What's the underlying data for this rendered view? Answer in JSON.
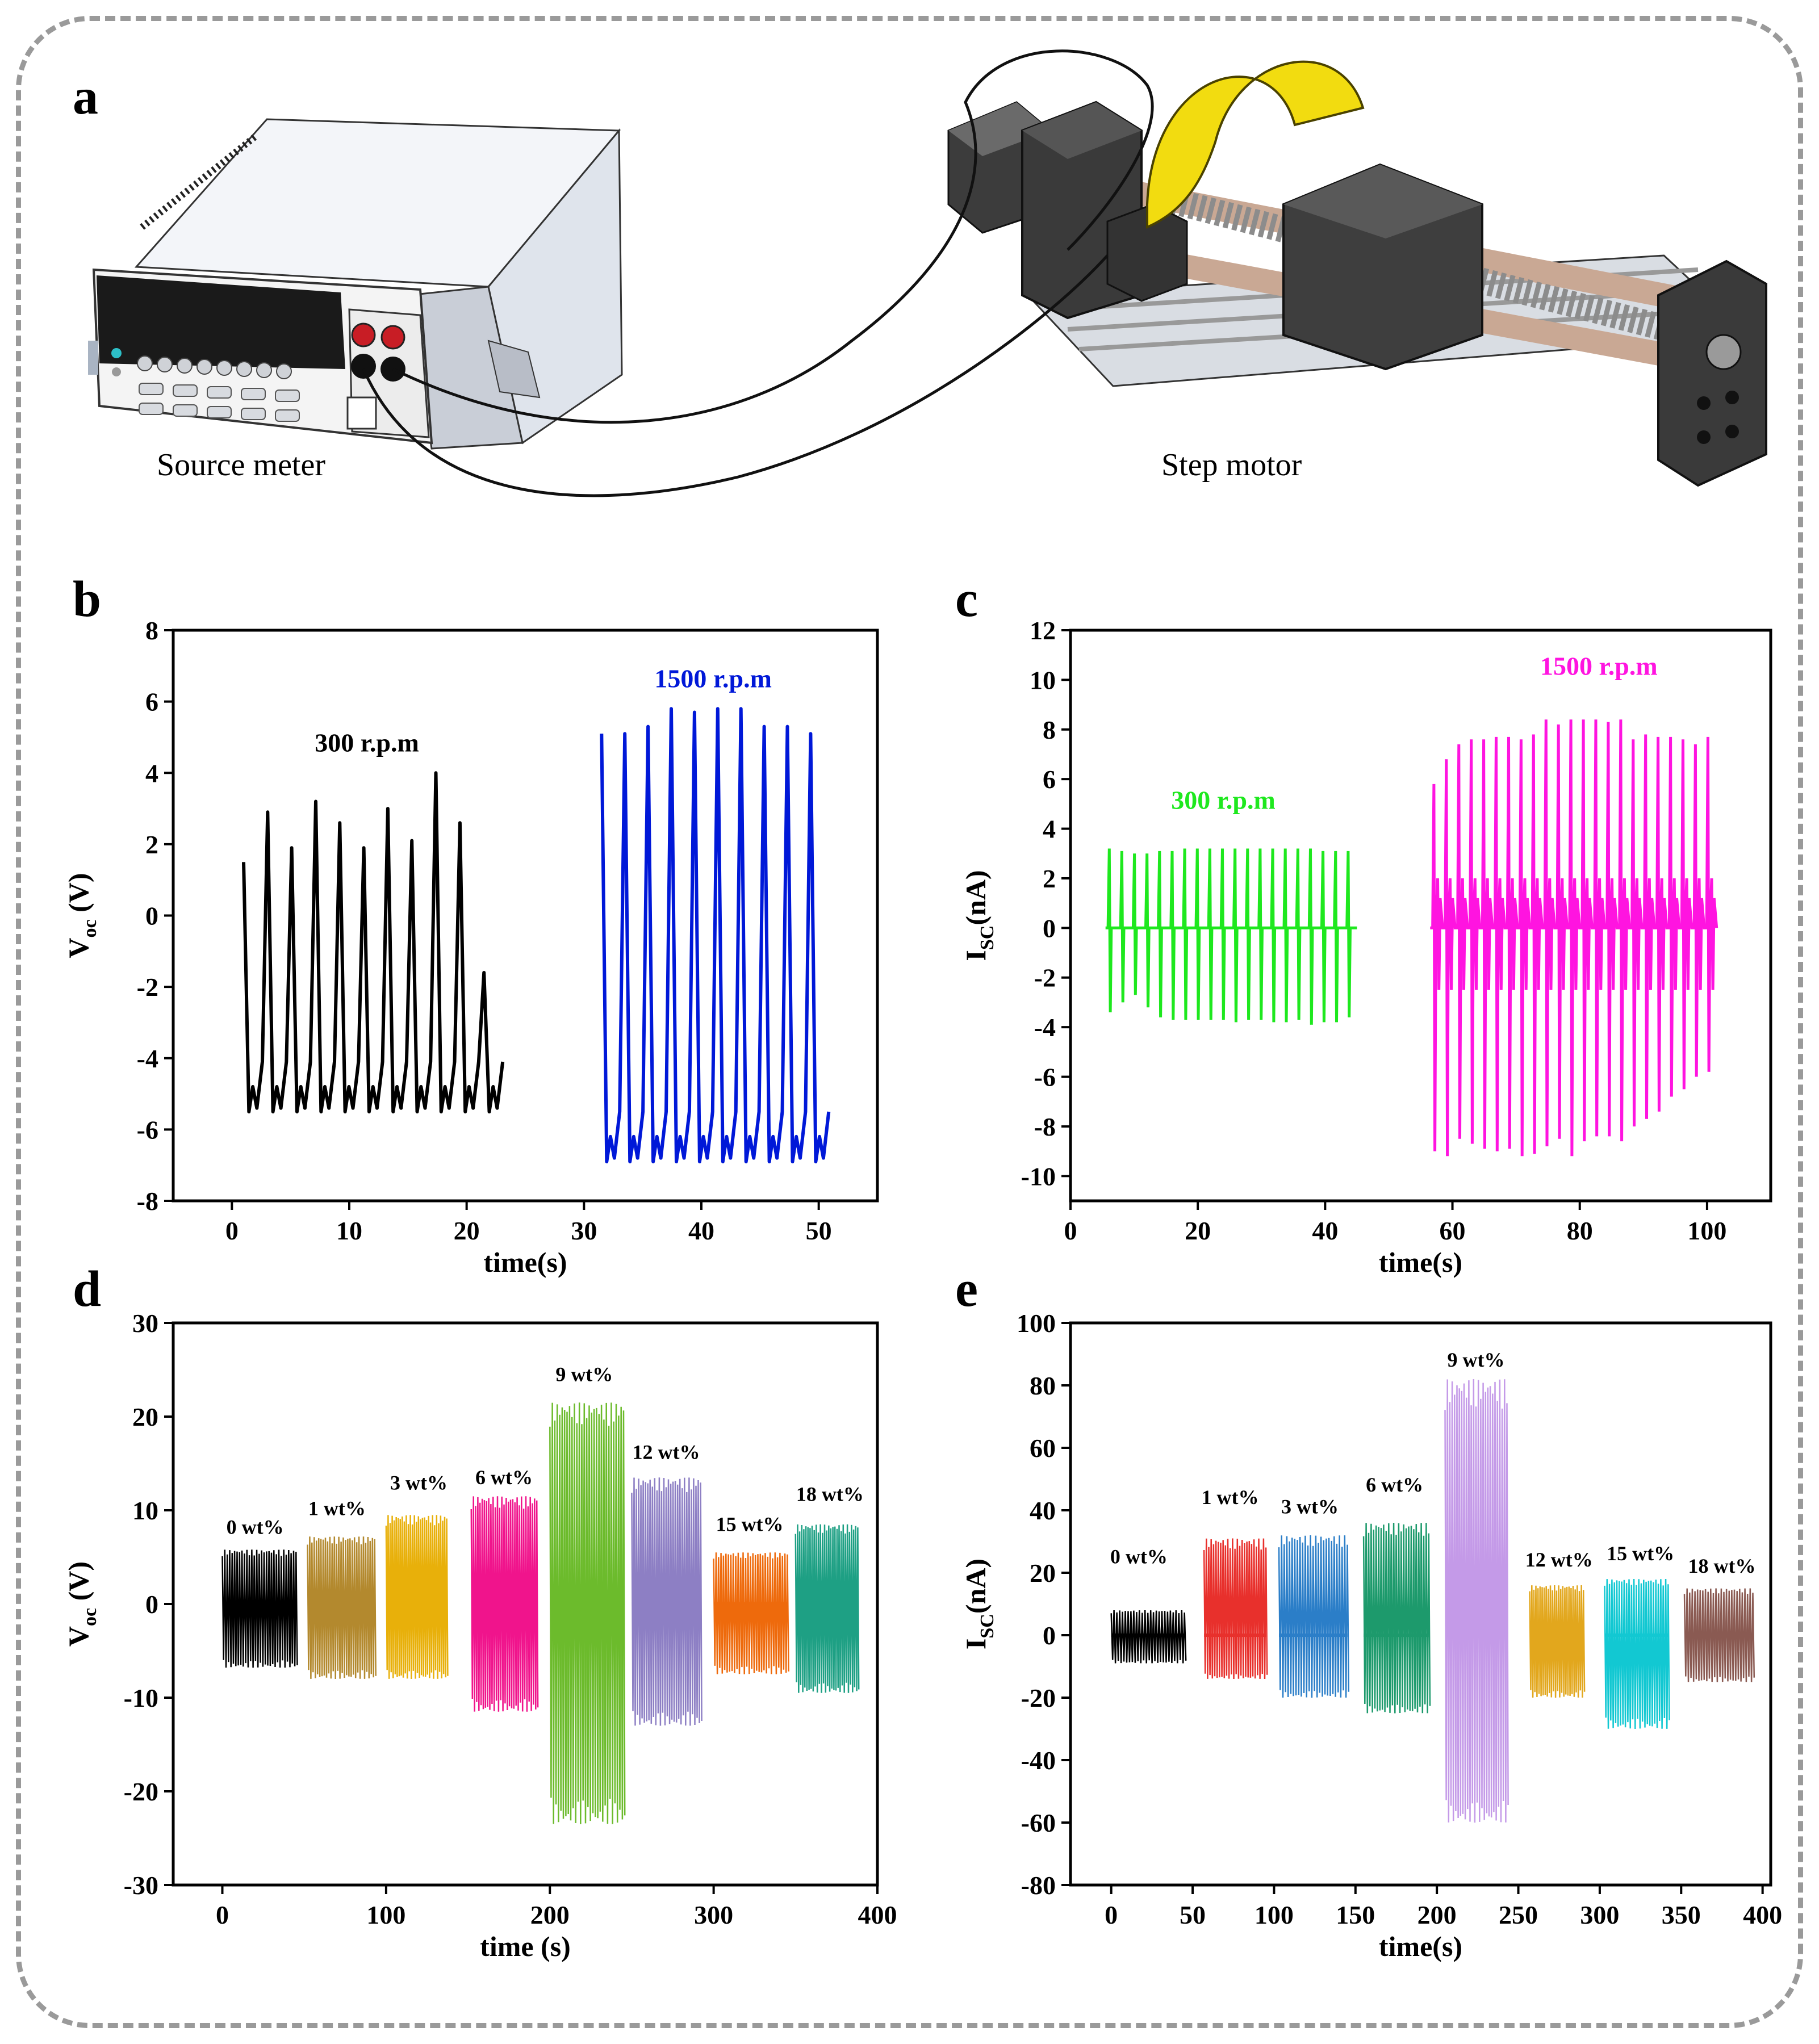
{
  "panels": {
    "a": {
      "label": "a",
      "source_label": "Source meter",
      "motor_label": "Step motor"
    }
  },
  "chart_data": [
    {
      "id": "b",
      "panel_label": "b",
      "type": "line",
      "xlabel": "time(s)",
      "ylabel_main": "V",
      "ylabel_sub": "oc",
      "ylabel_unit": " (V)",
      "xlim": [
        -5,
        55
      ],
      "ylim": [
        -8,
        8
      ],
      "xticks": [
        0,
        10,
        20,
        30,
        40,
        50
      ],
      "yticks": [
        -8,
        -6,
        -4,
        -2,
        0,
        2,
        4,
        6,
        8
      ],
      "series": [
        {
          "name": "300 r.p.m",
          "color": "#000000",
          "t0": 1,
          "t1": 22.5,
          "period": 2.15,
          "low": -5.5,
          "peaks": [
            1.5,
            2.9,
            1.9,
            3.2,
            2.6,
            1.9,
            3.0,
            2.1,
            4.0,
            2.6,
            -1.6
          ]
        },
        {
          "name": "1500 r.p.m",
          "color": "#0018d8",
          "t0": 31.5,
          "t1": 50.3,
          "period": 2.1,
          "low": -6.9,
          "peaks": [
            5.1,
            5.1,
            5.3,
            5.8,
            5.7,
            5.8,
            5.8,
            5.3,
            5.3,
            5.1
          ]
        }
      ],
      "annotations": [
        {
          "text": "300 r.p.m",
          "x": 11.5,
          "y": 4.6,
          "color": "#000000"
        },
        {
          "text": "1500 r.p.m",
          "x": 41,
          "y": 6.4,
          "color": "#0018d8"
        }
      ]
    },
    {
      "id": "c",
      "panel_label": "c",
      "type": "line",
      "xlabel": "time(s)",
      "ylabel_main": "I",
      "ylabel_sub": "SC",
      "ylabel_unit": "(nA)",
      "xlim": [
        0,
        110
      ],
      "ylim": [
        -11,
        12
      ],
      "xticks": [
        0,
        20,
        40,
        60,
        80,
        100
      ],
      "yticks": [
        -10,
        -8,
        -6,
        -4,
        -2,
        0,
        2,
        4,
        6,
        8,
        10,
        12
      ],
      "series": [
        {
          "name": "300 r.p.m",
          "color": "#1ee81e",
          "t0": 5.5,
          "t1": 45,
          "count": 20,
          "pos": [
            3.2,
            3.1,
            3.0,
            3.0,
            3.1,
            3.1,
            3.2,
            3.2,
            3.2,
            3.2,
            3.2,
            3.2,
            3.2,
            3.2,
            3.2,
            3.2,
            3.2,
            3.1,
            3.1,
            3.1
          ],
          "neg": [
            -3.4,
            -3.0,
            -2.7,
            -3.2,
            -3.6,
            -3.7,
            -3.7,
            -3.7,
            -3.7,
            -3.7,
            -3.8,
            -3.7,
            -3.7,
            -3.8,
            -3.8,
            -3.7,
            -3.9,
            -3.8,
            -3.8,
            -3.6
          ]
        },
        {
          "name": "1500 r.p.m",
          "color": "#ff14e0",
          "t0": 56.5,
          "t1": 101.5,
          "count": 23,
          "pos": [
            5.8,
            6.8,
            7.4,
            7.6,
            7.6,
            7.7,
            7.7,
            7.6,
            7.8,
            8.4,
            8.2,
            8.4,
            8.4,
            8.4,
            8.3,
            8.4,
            7.6,
            7.8,
            7.7,
            7.7,
            7.6,
            7.4,
            7.7
          ],
          "neg": [
            -9.0,
            -9.2,
            -8.5,
            -8.7,
            -8.9,
            -9.0,
            -8.9,
            -9.2,
            -9.1,
            -8.8,
            -8.5,
            -9.2,
            -8.6,
            -8.4,
            -8.4,
            -8.6,
            -8.0,
            -7.7,
            -7.4,
            -6.8,
            -6.5,
            -6.0,
            -5.8
          ]
        }
      ],
      "annotations": [
        {
          "text": "300 r.p.m",
          "x": 24,
          "y": 4.8,
          "color": "#1ee81e"
        },
        {
          "text": "1500 r.p.m",
          "x": 83,
          "y": 10.2,
          "color": "#ff14e0"
        }
      ]
    },
    {
      "id": "d",
      "panel_label": "d",
      "type": "line",
      "xlabel": "time (s)",
      "ylabel_main": "V",
      "ylabel_sub": "oc",
      "ylabel_unit": " (V)",
      "xlim": [
        -30,
        400
      ],
      "ylim": [
        -30,
        30
      ],
      "xticks": [
        0,
        100,
        200,
        300,
        400
      ],
      "yticks": [
        -30,
        -20,
        -10,
        0,
        10,
        20,
        30
      ],
      "series": [
        {
          "name": "0 wt%",
          "color": "#000000",
          "t0": 0,
          "t1": 45,
          "max": 5.8,
          "min": -6.8
        },
        {
          "name": "1 wt%",
          "color": "#b3892e",
          "t0": 52,
          "t1": 93,
          "max": 7.2,
          "min": -8.0
        },
        {
          "name": "3 wt%",
          "color": "#e8b00a",
          "t0": 100,
          "t1": 137,
          "max": 9.5,
          "min": -8.0
        },
        {
          "name": "6 wt%",
          "color": "#f0148c",
          "t0": 152,
          "t1": 192,
          "max": 11.5,
          "min": -11.5
        },
        {
          "name": "9 wt%",
          "color": "#6cbb2c",
          "t0": 200,
          "t1": 245,
          "max": 21.5,
          "min": -23.5
        },
        {
          "name": "12 wt%",
          "color": "#8d7fc4",
          "t0": 250,
          "t1": 292,
          "max": 13.5,
          "min": -13.0
        },
        {
          "name": "15 wt%",
          "color": "#ee6a0c",
          "t0": 300,
          "t1": 345,
          "max": 5.5,
          "min": -7.5
        },
        {
          "name": "18 wt%",
          "color": "#1ea084",
          "t0": 350,
          "t1": 388,
          "max": 8.5,
          "min": -9.5
        }
      ],
      "annotations": [
        {
          "text": "0 wt%",
          "x": 20,
          "y": 7.5
        },
        {
          "text": "1 wt%",
          "x": 70,
          "y": 9.5
        },
        {
          "text": "3 wt%",
          "x": 120,
          "y": 12.2
        },
        {
          "text": "6 wt%",
          "x": 172,
          "y": 12.8
        },
        {
          "text": "9 wt%",
          "x": 221,
          "y": 23.8
        },
        {
          "text": "12 wt%",
          "x": 271,
          "y": 15.5
        },
        {
          "text": "15 wt%",
          "x": 322,
          "y": 7.8
        },
        {
          "text": "18 wt%",
          "x": 371,
          "y": 11.0
        }
      ]
    },
    {
      "id": "e",
      "panel_label": "e",
      "type": "line",
      "xlabel": "time(s)",
      "ylabel_main": "I",
      "ylabel_sub": "SC",
      "ylabel_unit": "(nA)",
      "xlim": [
        -25,
        405
      ],
      "ylim": [
        -80,
        100
      ],
      "xticks": [
        0,
        50,
        100,
        150,
        200,
        250,
        300,
        350,
        400
      ],
      "yticks": [
        -80,
        -60,
        -40,
        -20,
        0,
        20,
        40,
        60,
        80,
        100
      ],
      "series": [
        {
          "name": "0 wt%",
          "color": "#000000",
          "t0": 0,
          "t1": 45,
          "max": 8,
          "min": -9
        },
        {
          "name": "1 wt%",
          "color": "#e8302c",
          "t0": 57,
          "t1": 95,
          "max": 31,
          "min": -14
        },
        {
          "name": "3 wt%",
          "color": "#2b7ec8",
          "t0": 103,
          "t1": 145,
          "max": 32,
          "min": -20
        },
        {
          "name": "6 wt%",
          "color": "#1d9a6c",
          "t0": 155,
          "t1": 195,
          "max": 36,
          "min": -25
        },
        {
          "name": "9 wt%",
          "color": "#c49ae8",
          "t0": 205,
          "t1": 243,
          "max": 82,
          "min": -60
        },
        {
          "name": "12 wt%",
          "color": "#e2a71d",
          "t0": 257,
          "t1": 290,
          "max": 16,
          "min": -20
        },
        {
          "name": "15 wt%",
          "color": "#12c8d2",
          "t0": 303,
          "t1": 342,
          "max": 18,
          "min": -30
        },
        {
          "name": "18 wt%",
          "color": "#8a5a52",
          "t0": 352,
          "t1": 394,
          "max": 15,
          "min": -15
        }
      ],
      "annotations": [
        {
          "text": "0 wt%",
          "x": 17,
          "y": 23
        },
        {
          "text": "1 wt%",
          "x": 73,
          "y": 42
        },
        {
          "text": "3 wt%",
          "x": 122,
          "y": 39
        },
        {
          "text": "6 wt%",
          "x": 174,
          "y": 46
        },
        {
          "text": "9 wt%",
          "x": 224,
          "y": 86
        },
        {
          "text": "12 wt%",
          "x": 275,
          "y": 22
        },
        {
          "text": "15 wt%",
          "x": 325,
          "y": 24
        },
        {
          "text": "18 wt%",
          "x": 375,
          "y": 20
        }
      ]
    }
  ]
}
